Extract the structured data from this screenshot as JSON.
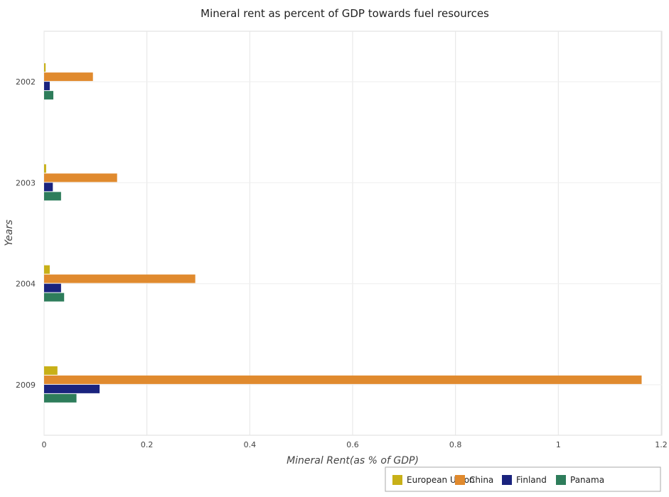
{
  "chart_data": {
    "type": "bar",
    "orientation": "horizontal",
    "title": "Mineral rent as percent of GDP towards fuel resources",
    "xlabel": "Mineral Rent(as % of GDP)",
    "ylabel": "Years",
    "categories": [
      "2002",
      "2003",
      "2004",
      "2009"
    ],
    "xlim": [
      0,
      1.2
    ],
    "xticks": [
      "0",
      "0.2",
      "0.4",
      "0.6",
      "0.8",
      "1",
      "1.2"
    ],
    "xtick_values": [
      0,
      0.2,
      0.4,
      0.6,
      0.8,
      1.0,
      1.2
    ],
    "grid": true,
    "legend_position": "bottom-right",
    "series": [
      {
        "name": "European Union",
        "color": "#c8b018",
        "values": [
          0.003,
          0.004,
          0.011,
          0.026
        ]
      },
      {
        "name": "China",
        "color": "#e08a2e",
        "values": [
          0.095,
          0.142,
          0.294,
          1.162
        ]
      },
      {
        "name": "Finland",
        "color": "#1a237e",
        "values": [
          0.011,
          0.017,
          0.033,
          0.108
        ]
      },
      {
        "name": "Panama",
        "color": "#2e7d5b",
        "values": [
          0.018,
          0.033,
          0.039,
          0.063
        ]
      }
    ]
  }
}
